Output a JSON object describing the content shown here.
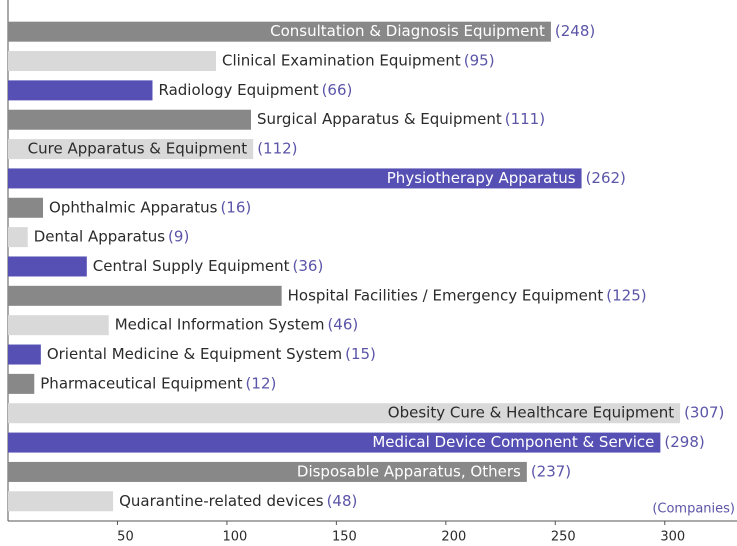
{
  "chart_data": {
    "type": "hbar",
    "categories": [
      "Consultation & Diagnosis Equipment",
      "Clinical Examination Equipment",
      "Radiology Equipment",
      "Surgical Apparatus & Equipment",
      "Cure Apparatus & Equipment",
      "Physiotherapy Apparatus",
      "Ophthalmic Apparatus",
      "Dental Apparatus",
      "Central Supply Equipment",
      "Hospital Facilities / Emergency Equipment",
      "Medical Information System",
      "Oriental Medicine & Equipment System",
      "Pharmaceutical Equipment",
      "Obesity Cure & Healthcare Equipment",
      "Medical Device Component & Service",
      "Disposable Apparatus, Others",
      "Quarantine-related devices"
    ],
    "values": [
      248,
      95,
      66,
      111,
      112,
      262,
      16,
      9,
      36,
      125,
      46,
      15,
      12,
      307,
      298,
      237,
      48
    ],
    "value_labels": [
      "(248)",
      "(95)",
      "(66)",
      "(111)",
      "(112)",
      "(262)",
      "(16)",
      "(9)",
      "(36)",
      "(125)",
      "(46)",
      "(15)",
      "(12)",
      "(307)",
      "(298)",
      "(237)",
      "(48)"
    ],
    "colors": [
      "#888888",
      "#d9d9d9",
      "#5650b4",
      "#888888",
      "#d9d9d9",
      "#5650b4",
      "#888888",
      "#d9d9d9",
      "#5650b4",
      "#888888",
      "#d9d9d9",
      "#5650b4",
      "#888888",
      "#d9d9d9",
      "#5650b4",
      "#888888",
      "#d9d9d9"
    ],
    "x_label": "(Companies)",
    "xlim": [
      0,
      333
    ],
    "xticks": [
      50,
      100,
      150,
      200,
      250,
      300
    ]
  }
}
